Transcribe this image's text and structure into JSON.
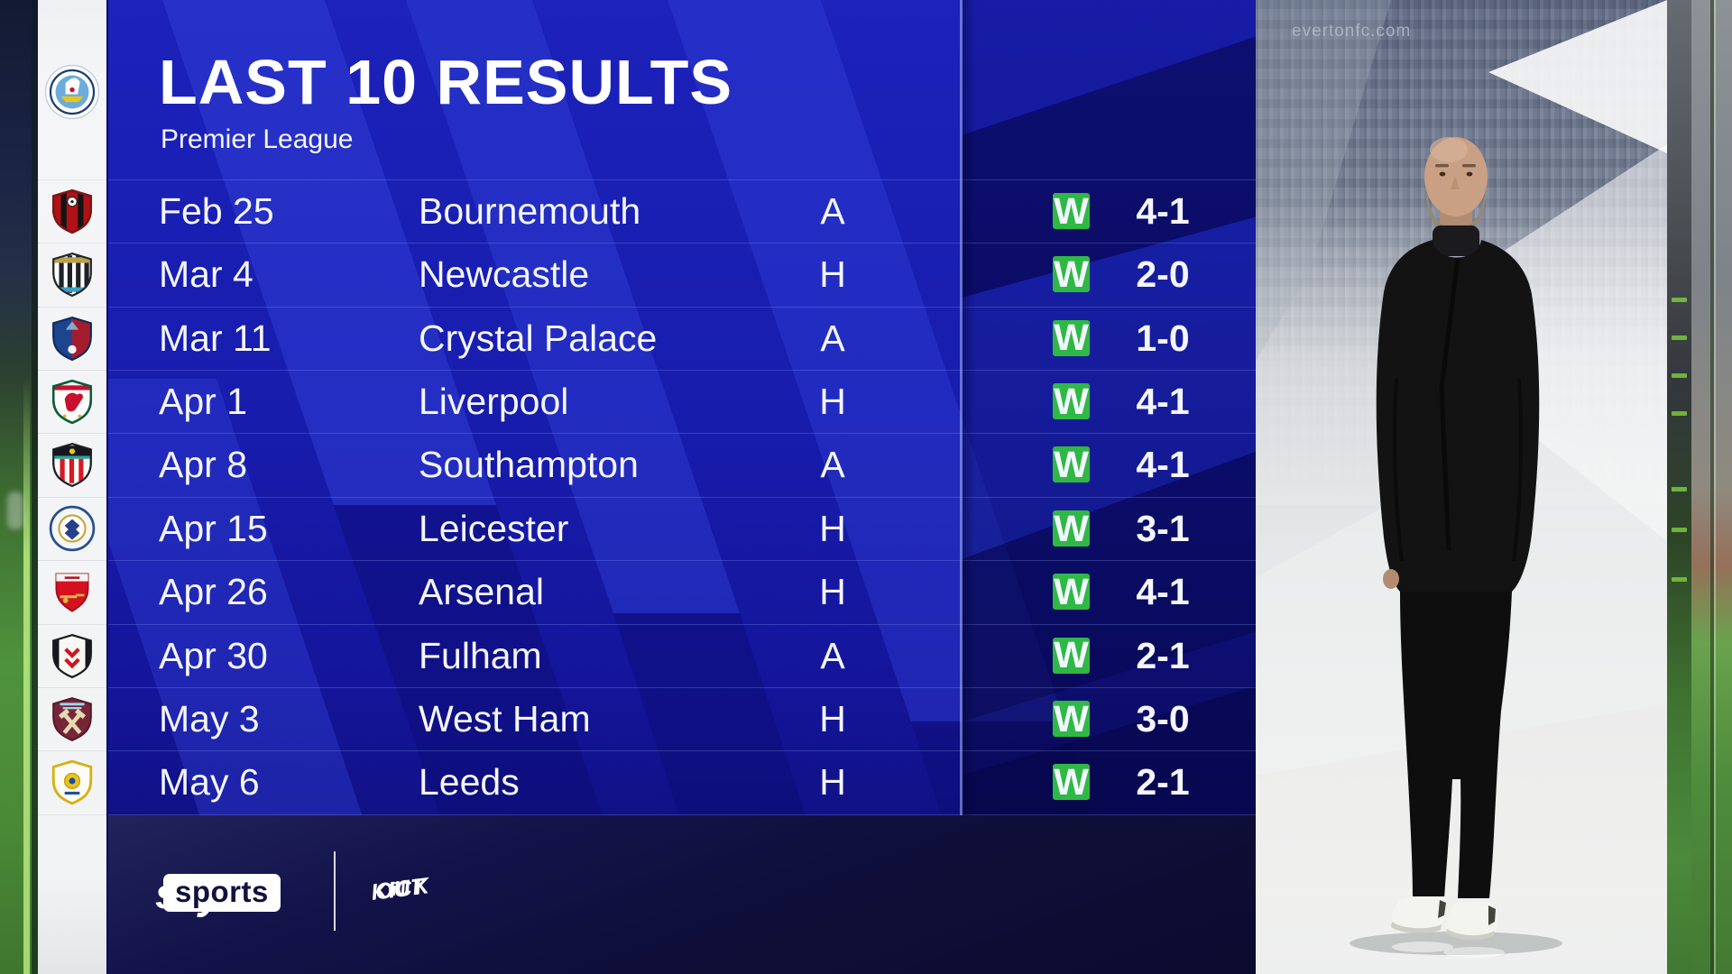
{
  "panel": {
    "title": "LAST 10 RESULTS",
    "subtitle": "Premier League"
  },
  "team": {
    "name": "Manchester City",
    "badge": "manchester-city"
  },
  "results": [
    {
      "date": "Feb 25",
      "opponent": "Bournemouth",
      "venue": "A",
      "outcome": "W",
      "score": "4-1",
      "badge": "bournemouth"
    },
    {
      "date": "Mar 4",
      "opponent": "Newcastle",
      "venue": "H",
      "outcome": "W",
      "score": "2-0",
      "badge": "newcastle"
    },
    {
      "date": "Mar 11",
      "opponent": "Crystal Palace",
      "venue": "A",
      "outcome": "W",
      "score": "1-0",
      "badge": "crystal-palace"
    },
    {
      "date": "Apr 1",
      "opponent": "Liverpool",
      "venue": "H",
      "outcome": "W",
      "score": "4-1",
      "badge": "liverpool"
    },
    {
      "date": "Apr 8",
      "opponent": "Southampton",
      "venue": "A",
      "outcome": "W",
      "score": "4-1",
      "badge": "southampton"
    },
    {
      "date": "Apr 15",
      "opponent": "Leicester",
      "venue": "H",
      "outcome": "W",
      "score": "3-1",
      "badge": "leicester"
    },
    {
      "date": "Apr 26",
      "opponent": "Arsenal",
      "venue": "H",
      "outcome": "W",
      "score": "4-1",
      "badge": "arsenal"
    },
    {
      "date": "Apr 30",
      "opponent": "Fulham",
      "venue": "A",
      "outcome": "W",
      "score": "2-1",
      "badge": "fulham"
    },
    {
      "date": "May 3",
      "opponent": "West Ham",
      "venue": "H",
      "outcome": "W",
      "score": "3-0",
      "badge": "west-ham"
    },
    {
      "date": "May 6",
      "opponent": "Leeds",
      "venue": "H",
      "outcome": "W",
      "score": "2-1",
      "badge": "leeds"
    }
  ],
  "footer": {
    "sky": "sky",
    "sports": "sports",
    "kick_it_out_lines": [
      "KICK",
      "iT",
      "OUT"
    ]
  },
  "background": {
    "watermark": "evertonfc.com"
  },
  "colors": {
    "win_green": "#2eb944",
    "panel_blue": "#171cae",
    "stripe_blue": "#2d3cd8",
    "dark_navy": "#0e0e38"
  }
}
